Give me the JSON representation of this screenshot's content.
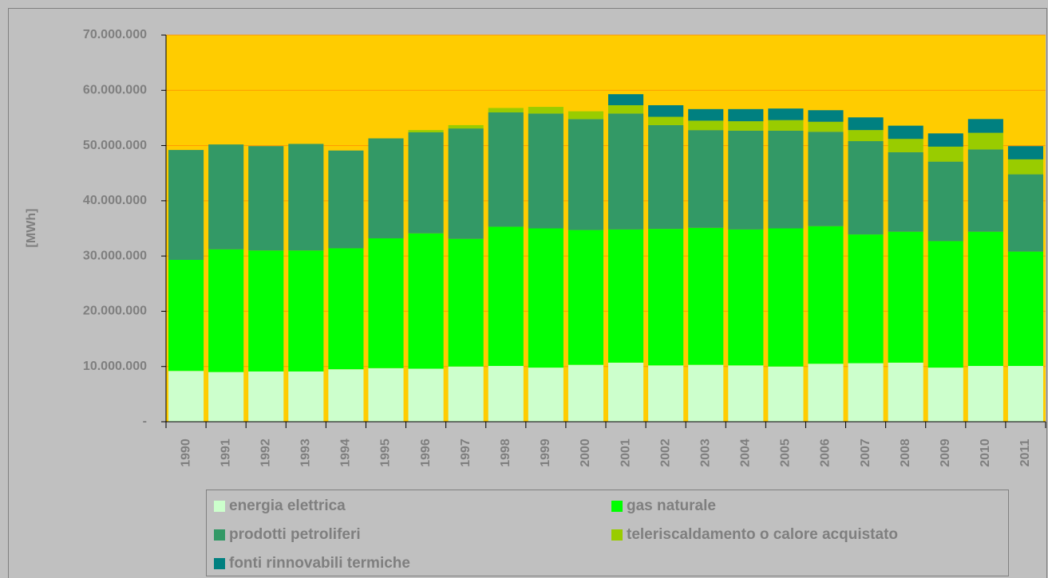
{
  "chart_data": {
    "type": "stacked-bar",
    "y_label": "[MWh]",
    "categories": [
      "1990",
      "1991",
      "1992",
      "1993",
      "1994",
      "1995",
      "1996",
      "1997",
      "1998",
      "1999",
      "2000",
      "2001",
      "2002",
      "2003",
      "2004",
      "2005",
      "2006",
      "2007",
      "2008",
      "2009",
      "2010",
      "2011"
    ],
    "series": [
      {
        "name": "energia elettrica",
        "color": "#ccffcc",
        "values": [
          9200000,
          9000000,
          9100000,
          9100000,
          9500000,
          9700000,
          9600000,
          10000000,
          10100000,
          9800000,
          10300000,
          10700000,
          10200000,
          10300000,
          10200000,
          10000000,
          10500000,
          10600000,
          10700000,
          9800000,
          10100000,
          10100000
        ]
      },
      {
        "name": "gas naturale",
        "color": "#00ff00",
        "values": [
          20100000,
          22200000,
          21900000,
          21900000,
          21900000,
          23500000,
          24500000,
          23100000,
          25200000,
          25200000,
          24400000,
          24100000,
          24700000,
          24800000,
          24600000,
          25000000,
          24900000,
          23300000,
          23700000,
          22900000,
          24300000,
          20700000
        ]
      },
      {
        "name": "prodotti petroliferi",
        "color": "#339966",
        "values": [
          19900000,
          19000000,
          18900000,
          19300000,
          17700000,
          18100000,
          18300000,
          20000000,
          20700000,
          20800000,
          20100000,
          21000000,
          18800000,
          17700000,
          17900000,
          17700000,
          17100000,
          16900000,
          14400000,
          14400000,
          14900000,
          14000000
        ]
      },
      {
        "name": "teleriscaldamento o calore acquistato",
        "color": "#99cc00",
        "values": [
          0,
          0,
          0,
          0,
          0,
          0,
          400000,
          600000,
          800000,
          1200000,
          1400000,
          1500000,
          1500000,
          1700000,
          1700000,
          1900000,
          1800000,
          2000000,
          2400000,
          2700000,
          3000000,
          2700000
        ]
      },
      {
        "name": "fonti rinnovabili termiche",
        "color": "#008080",
        "values": [
          0,
          0,
          0,
          0,
          0,
          0,
          0,
          0,
          0,
          0,
          0,
          2000000,
          2100000,
          2100000,
          2200000,
          2100000,
          2100000,
          2300000,
          2400000,
          2400000,
          2500000,
          2400000
        ]
      }
    ],
    "ylim": [
      0,
      70000000
    ],
    "yticks": [
      {
        "value": 0,
        "label": "-"
      },
      {
        "value": 10000000,
        "label": "10.000.000"
      },
      {
        "value": 20000000,
        "label": "20.000.000"
      },
      {
        "value": 30000000,
        "label": "30.000.000"
      },
      {
        "value": 40000000,
        "label": "40.000.000"
      },
      {
        "value": 50000000,
        "label": "50.000.000"
      },
      {
        "value": 60000000,
        "label": "60.000.000"
      },
      {
        "value": 70000000,
        "label": "70.000.000"
      }
    ],
    "grid": true,
    "plot_color": "#ffcc00",
    "grid_color": "#ff9900"
  }
}
